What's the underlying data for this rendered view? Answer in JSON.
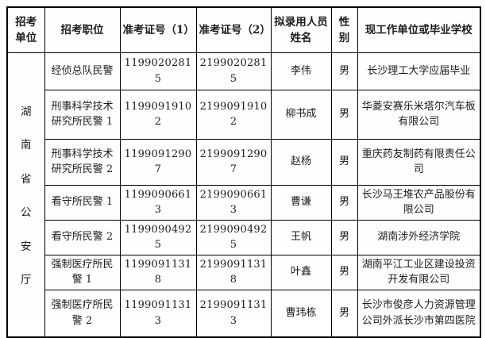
{
  "page": {
    "background": "#fefefe"
  },
  "table": {
    "colors": {
      "border": "#000000",
      "text": "#1c1c1c",
      "background": "#fefefe"
    },
    "headers": [
      "招考单位",
      "招考职位",
      "准考证号（1）",
      "准考证号（2）",
      "拟录用人员姓名",
      "性别",
      "现工作单位或毕业学校"
    ],
    "unit": "湖南省公安厅",
    "unit_chars": [
      "湖",
      "南",
      "省",
      "公",
      "安",
      "厅"
    ],
    "rows": [
      {
        "position": "经侦总队民警",
        "ticket1": "11990202815",
        "ticket2": "21990202815",
        "name": "李伟",
        "gender": "男",
        "school": "长沙理工大学应届毕业"
      },
      {
        "position": "刑事科学技术研究所民警 1",
        "ticket1": "11990919102",
        "ticket2": "21990919102",
        "name": "柳书成",
        "gender": "男",
        "school": "华菱安赛乐米塔尔汽车板有限公司"
      },
      {
        "position": "刑事科学技术研究所民警 2",
        "ticket1": "11990912907",
        "ticket2": "21990912907",
        "name": "赵杨",
        "gender": "男",
        "school": "重庆药友制药有限责任公司"
      },
      {
        "position": "看守所民警 1",
        "ticket1": "11990906613",
        "ticket2": "21990906613",
        "name": "曹谦",
        "gender": "男",
        "school": "长沙马王堆农产品股份有限公司"
      },
      {
        "position": "看守所民警 2",
        "ticket1": "11990904925",
        "ticket2": "21990904925",
        "name": "王帆",
        "gender": "男",
        "school": "湖南涉外经济学院"
      },
      {
        "position": "强制医疗所民警 1",
        "ticket1": "11990911318",
        "ticket2": "21990911318",
        "name": "叶鑫",
        "gender": "男",
        "school": "湖南平江工业区建设投资开发有限公司"
      },
      {
        "position": "强制医疗所民警 2",
        "ticket1": "11990911313",
        "ticket2": "21990911313",
        "name": "曹玮栋",
        "gender": "男",
        "school": "长沙市俊彦人力资源管理公司外派长沙市第四医院"
      }
    ]
  }
}
